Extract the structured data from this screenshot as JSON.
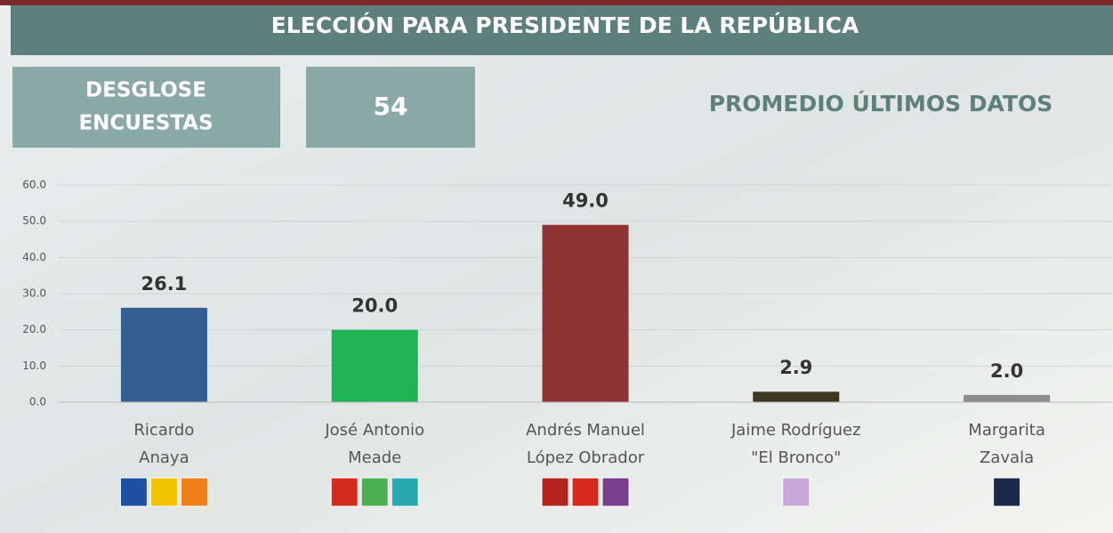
{
  "header": {
    "box_label": [
      "DESGLOSE",
      "ENCUESTAS"
    ],
    "count": 54
  },
  "chart_data": {
    "type": "bar",
    "title": "ELECCIÓN PARA PRESIDENTE DE LA REPÚBLICA",
    "subtitle": "PROMEDIO ÚLTIMOS DATOS",
    "categories": [
      [
        "Ricardo",
        "Anaya"
      ],
      [
        "José Antonio",
        "Meade"
      ],
      [
        "Andrés Manuel",
        "López Obrador"
      ],
      [
        "Jaime Rodríguez",
        "\"El Bronco\""
      ],
      [
        "Margarita",
        "Zavala"
      ]
    ],
    "values": [
      26.1,
      20.0,
      49.0,
      2.9,
      2.0
    ],
    "value_labels": [
      "26.1",
      "20.0",
      "49.0",
      "2.9",
      "2.0"
    ],
    "colors": [
      "#355e93",
      "#1fb356",
      "#8e3434",
      "#3d3920",
      "#8c8c8c"
    ],
    "ylim": [
      0,
      60
    ],
    "yticks": [
      {
        "value": 0,
        "label": "0.0"
      },
      {
        "value": 10,
        "label": "10.0"
      },
      {
        "value": 20,
        "label": "20.0"
      },
      {
        "value": 30,
        "label": "30.0"
      },
      {
        "value": 40,
        "label": "40.0"
      },
      {
        "value": 50,
        "label": "50.0"
      },
      {
        "value": 60,
        "label": "60.0"
      }
    ],
    "grid": true
  }
}
